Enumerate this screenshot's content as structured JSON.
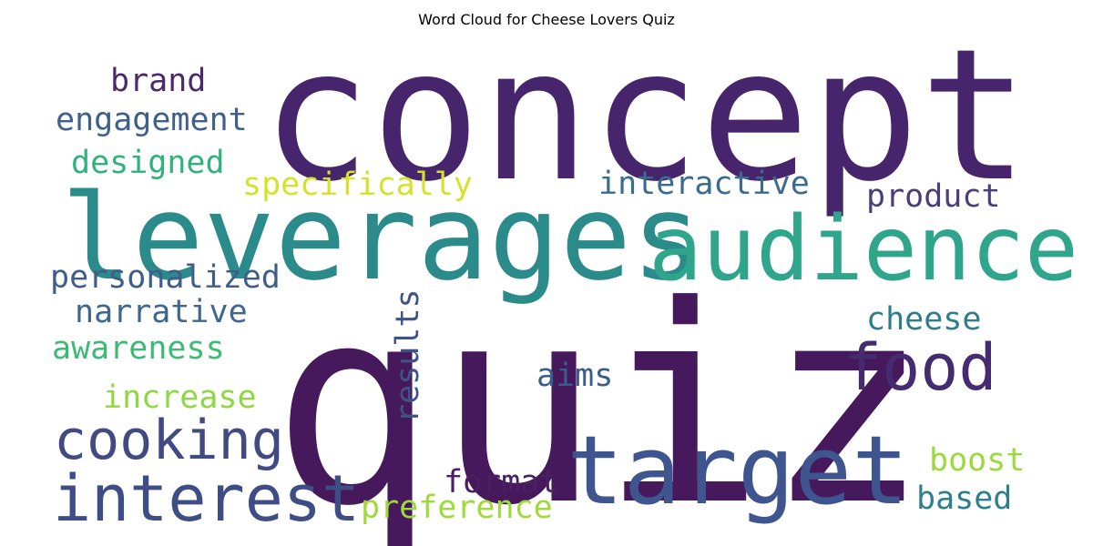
{
  "title": "Word Cloud for Cheese Lovers Quiz",
  "words": [
    {
      "text": "quiz",
      "color": "#46185c"
    },
    {
      "text": "concept",
      "color": "#47256d"
    },
    {
      "text": "leverages",
      "color": "#2b8a8a"
    },
    {
      "text": "audience",
      "color": "#2fa58c"
    },
    {
      "text": "target",
      "color": "#3f5590"
    },
    {
      "text": "interest",
      "color": "#3e4d86"
    },
    {
      "text": "food",
      "color": "#452c70"
    },
    {
      "text": "cooking",
      "color": "#424a82"
    },
    {
      "text": "brand",
      "color": "#4a2a6e"
    },
    {
      "text": "engagement",
      "color": "#3f5f8c"
    },
    {
      "text": "designed",
      "color": "#2fb37b"
    },
    {
      "text": "specifically",
      "color": "#d6e22a"
    },
    {
      "text": "interactive",
      "color": "#3b6b8d"
    },
    {
      "text": "product",
      "color": "#4a3d78"
    },
    {
      "text": "personalized",
      "color": "#3e5d8a"
    },
    {
      "text": "narrative",
      "color": "#3f668d"
    },
    {
      "text": "cheese",
      "color": "#2f7d8c"
    },
    {
      "text": "awareness",
      "color": "#3cbb75"
    },
    {
      "text": "results",
      "color": "#3e5486"
    },
    {
      "text": "aims",
      "color": "#3b5c8c"
    },
    {
      "text": "increase",
      "color": "#8fd744"
    },
    {
      "text": "boost",
      "color": "#9bd93c"
    },
    {
      "text": "format",
      "color": "#4a1f63"
    },
    {
      "text": "based",
      "color": "#2e7f8e"
    },
    {
      "text": "preference",
      "color": "#9fda3a"
    }
  ]
}
